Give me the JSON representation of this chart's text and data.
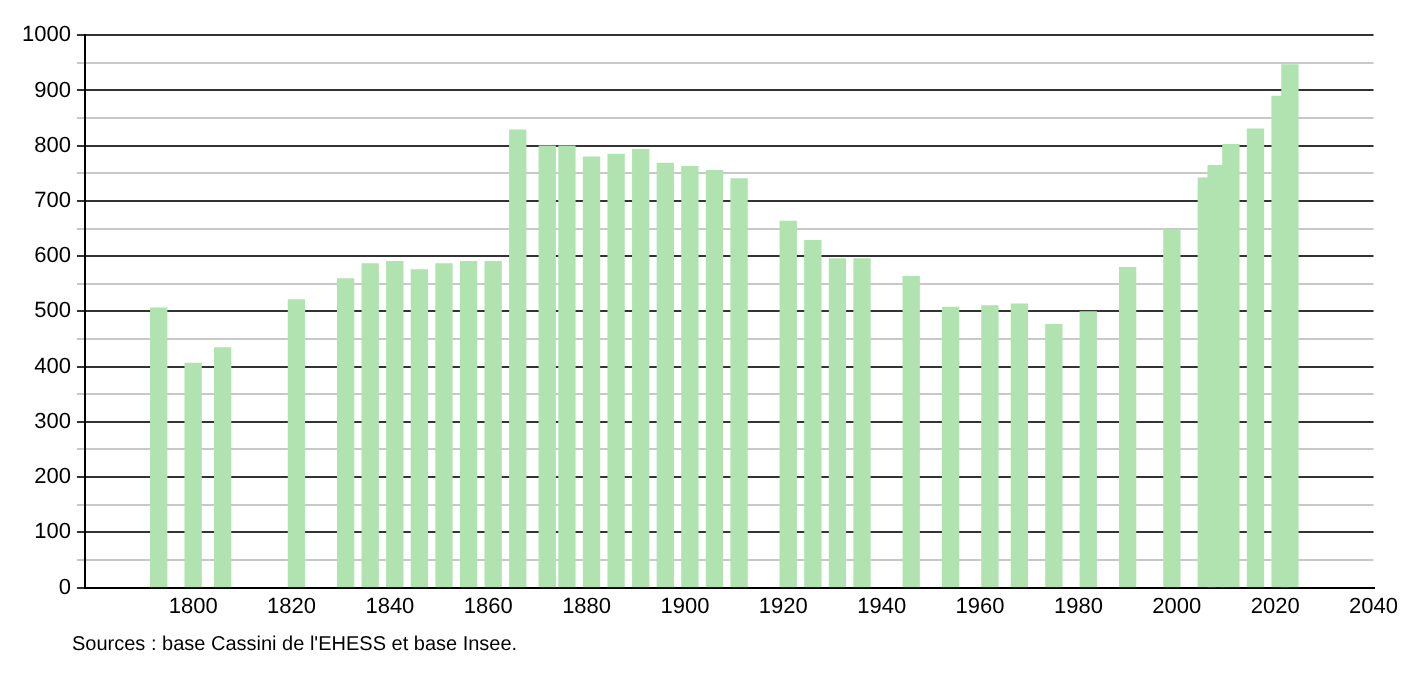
{
  "chart_data": {
    "type": "bar",
    "x": [
      1793,
      1800,
      1806,
      1821,
      1831,
      1836,
      1841,
      1846,
      1851,
      1856,
      1861,
      1866,
      1872,
      1876,
      1881,
      1886,
      1891,
      1896,
      1901,
      1906,
      1911,
      1921,
      1926,
      1931,
      1936,
      1946,
      1954,
      1962,
      1968,
      1975,
      1982,
      1990,
      1999,
      2006,
      2008,
      2011,
      2016,
      2021,
      2023
    ],
    "values": [
      506,
      406,
      434,
      521,
      559,
      586,
      590,
      575,
      586,
      590,
      590,
      828,
      799,
      799,
      779,
      784,
      793,
      768,
      762,
      755,
      740,
      663,
      628,
      595,
      595,
      563,
      507,
      510,
      513,
      476,
      499,
      579,
      647,
      741,
      764,
      802,
      830,
      889,
      946
    ],
    "color": "#b0e3b0",
    "xlim": [
      1778,
      2040
    ],
    "xticks": [
      1800,
      1820,
      1840,
      1860,
      1880,
      1900,
      1920,
      1940,
      1960,
      1980,
      2000,
      2020,
      2040
    ],
    "ylim": [
      0,
      1000
    ],
    "yticks": [
      0,
      {
        "value": 50,
        "label": null
      },
      100,
      {
        "value": 150,
        "label": null
      },
      200,
      {
        "value": 250,
        "label": null
      },
      300,
      {
        "value": 350,
        "label": null
      },
      400,
      {
        "value": 450,
        "label": null
      },
      500,
      {
        "value": 550,
        "label": null
      },
      600,
      {
        "value": 650,
        "label": null
      },
      700,
      {
        "value": 750,
        "label": null
      },
      800,
      {
        "value": 850,
        "label": null
      },
      900,
      {
        "value": 950,
        "label": null
      },
      1000
    ],
    "grid": "y",
    "annotations": [
      "Sources : base Cassini de l'EHESS et base Insee."
    ]
  }
}
